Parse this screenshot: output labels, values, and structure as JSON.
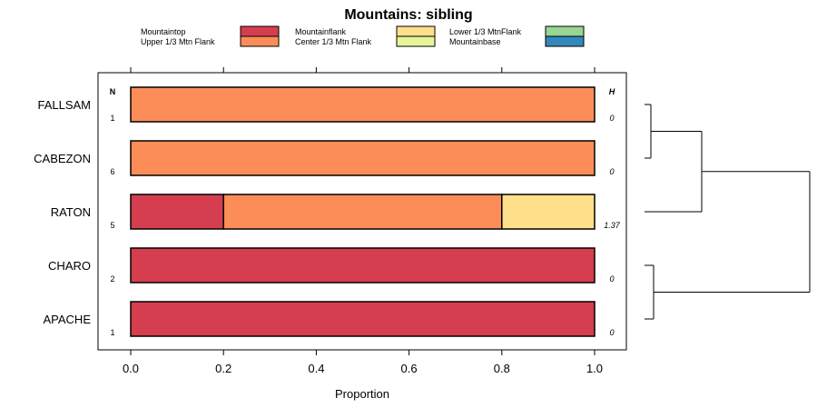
{
  "chart_data": {
    "type": "bar",
    "orientation": "horizontal",
    "stacked": true,
    "title": "Mountains: sibling",
    "xlabel": "Proportion",
    "ylabel": "",
    "xlim": [
      0,
      1
    ],
    "xticks": [
      0,
      0.2,
      0.4,
      0.6,
      0.8,
      1
    ],
    "xtick_labels": [
      "0.0",
      "0.2",
      "0.4",
      "0.6",
      "0.8",
      "1.0"
    ],
    "n_header": "N",
    "h_header": "H",
    "categories": [
      "FALLSAM",
      "CABEZON",
      "RATON",
      "CHARO",
      "APACHE"
    ],
    "n_values": [
      "1",
      "6",
      "5",
      "2",
      "1"
    ],
    "h_values": [
      "0",
      "0",
      "1.37",
      "0",
      "0"
    ],
    "series": [
      {
        "name": "Mountaintop",
        "color": "#d53e4f",
        "values": [
          0,
          0,
          0.2,
          1,
          1
        ]
      },
      {
        "name": "Upper 1/3 Mtn Flank",
        "color": "#fc8d59",
        "values": [
          1,
          1,
          0.6,
          0,
          0
        ]
      },
      {
        "name": "Mountainflank",
        "color": "#fee08b",
        "values": [
          0,
          0,
          0.2,
          0,
          0
        ]
      },
      {
        "name": "Center 1/3 Mtn Flank",
        "color": "#e6f598",
        "values": [
          0,
          0,
          0,
          0,
          0
        ]
      },
      {
        "name": "Lower 1/3 MtnFlank",
        "color": "#99d594",
        "values": [
          0,
          0,
          0,
          0,
          0
        ]
      },
      {
        "name": "Mountainbase",
        "color": "#3288bd",
        "values": [
          0,
          0,
          0,
          0,
          0
        ]
      }
    ],
    "dendrogram": {
      "leaves": [
        "FALLSAM",
        "CABEZON",
        "RATON",
        "CHARO",
        "APACHE"
      ],
      "merges": [
        [
          [
            "FALLSAM"
          ],
          [
            "CABEZON"
          ]
        ],
        [
          [
            "FALLSAM",
            "CABEZON"
          ],
          [
            "RATON"
          ]
        ],
        [
          [
            "CHARO"
          ],
          [
            "APACHE"
          ]
        ],
        [
          [
            "FALLSAM",
            "CABEZON",
            "RATON"
          ],
          [
            "CHARO",
            "APACHE"
          ]
        ]
      ]
    }
  }
}
